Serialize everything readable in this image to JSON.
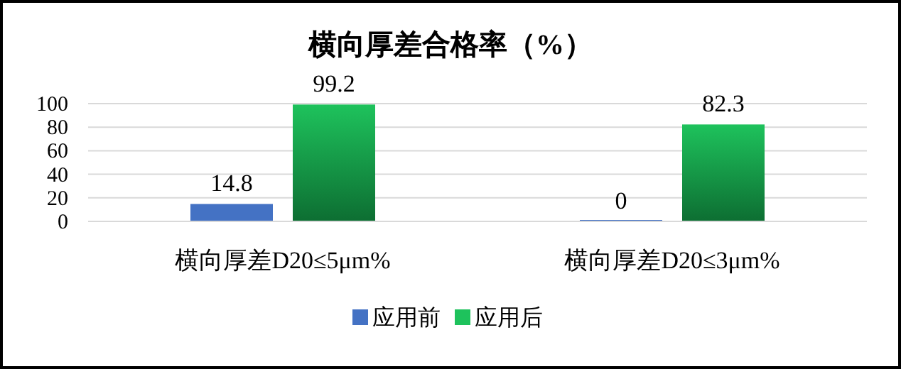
{
  "chart_data": {
    "type": "bar",
    "title": "横向厚差合格率（%）",
    "categories": [
      "横向厚差D20≤5μm%",
      "横向厚差D20≤3μm%"
    ],
    "series": [
      {
        "name": "应用前",
        "color": "#4472c4",
        "values": [
          14.8,
          0
        ]
      },
      {
        "name": "应用后",
        "color": "#1ec25c",
        "values": [
          99.2,
          82.3
        ]
      }
    ],
    "ylim": [
      0,
      100
    ],
    "yticks": [
      0,
      20,
      40,
      60,
      80,
      100
    ],
    "grid": "y",
    "legend": "bottom",
    "data_labels": true
  }
}
